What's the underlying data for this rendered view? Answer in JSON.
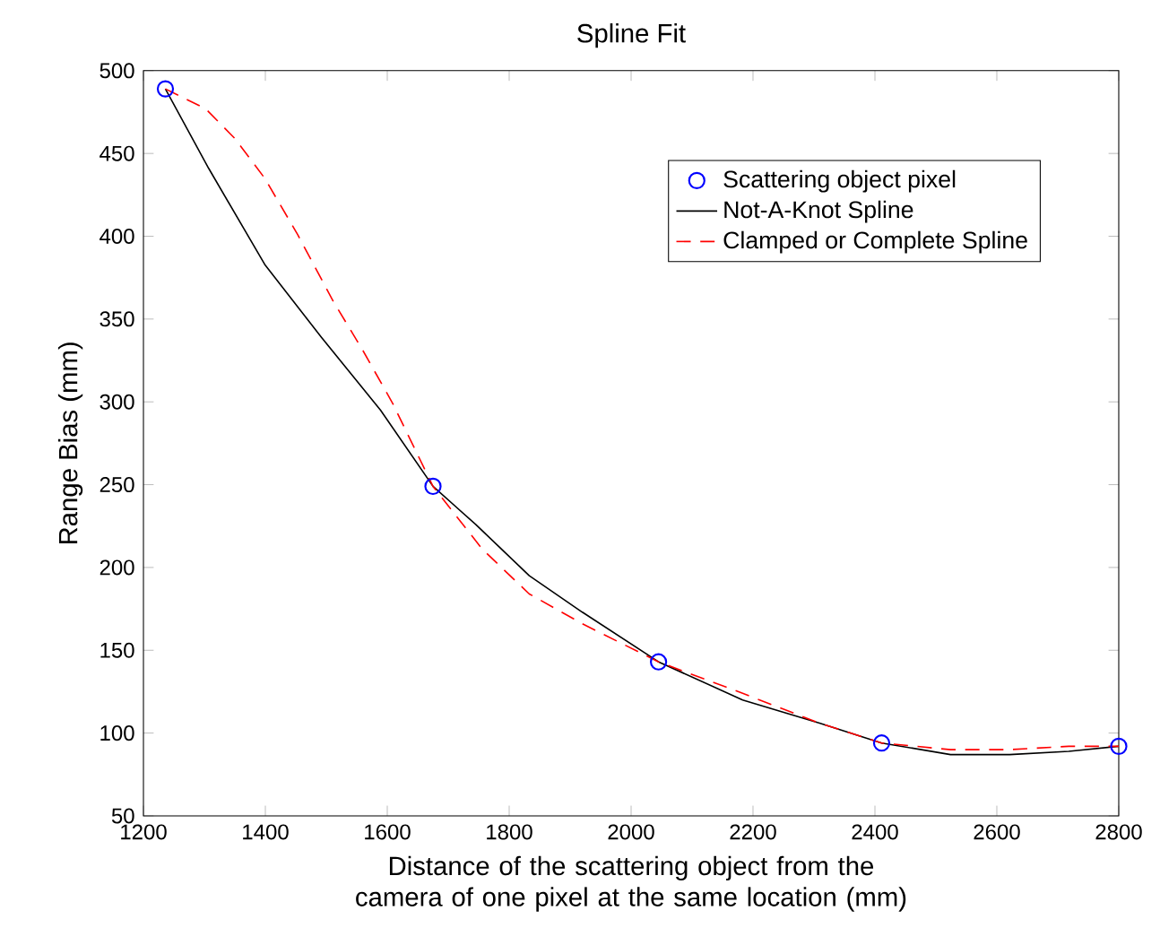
{
  "chart_data": {
    "type": "line",
    "title": "Spline Fit",
    "xlabel": "Distance of the scattering object from the camera of one pixel at the same location (mm)",
    "ylabel": "Range Bias (mm)",
    "xlim": [
      1200,
      2800
    ],
    "xticks": [
      1200,
      1400,
      1600,
      1800,
      2000,
      2200,
      2400,
      2600,
      2800
    ],
    "ylim": [
      50,
      500
    ],
    "yticks": [
      50,
      100,
      150,
      200,
      250,
      300,
      350,
      400,
      450,
      500
    ],
    "grid": false,
    "legend": "top right",
    "series": [
      {
        "name": "Scattering object pixel",
        "type": "scatter",
        "color": "#0000ff",
        "marker": "circle",
        "x": [
          1236,
          1675,
          2045,
          2411,
          2800
        ],
        "values": [
          489,
          249,
          143,
          94,
          92
        ]
      },
      {
        "name": "Not-A-Knot Spline",
        "color": "#000000",
        "line_style": "solid",
        "x": [
          1236,
          1307,
          1399,
          1492,
          1589,
          1675,
          1745,
          1833,
          1920,
          2045,
          2183,
          2309,
          2411,
          2524,
          2621,
          2718,
          2800
        ],
        "values": [
          489,
          441,
          383,
          339,
          295,
          249,
          226,
          195,
          173,
          143,
          120,
          106,
          94,
          87,
          87,
          89,
          92
        ]
      },
      {
        "name": "Clamped or Complete Spline",
        "color": "#ff0000",
        "line_style": "dashed",
        "x": [
          1236,
          1302,
          1350,
          1399,
          1453,
          1511,
          1560,
          1609,
          1675,
          1756,
          1833,
          1920,
          2045,
          2183,
          2309,
          2411,
          2524,
          2621,
          2718,
          2800
        ],
        "values": [
          489,
          477,
          459,
          435,
          401,
          361,
          331,
          299,
          249,
          211,
          184,
          166,
          143,
          124,
          106,
          94,
          90,
          90,
          92,
          92
        ]
      }
    ]
  }
}
